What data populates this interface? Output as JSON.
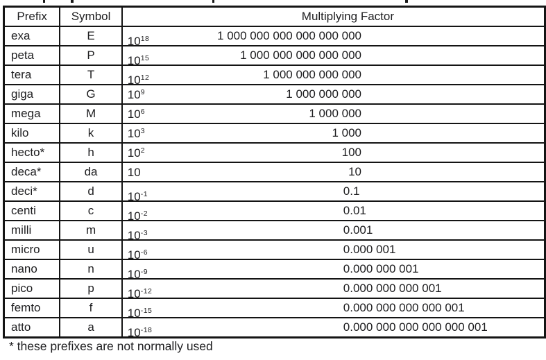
{
  "table": {
    "headers": [
      "Prefix",
      "Symbol",
      "Multiplying Factor"
    ],
    "rows": [
      {
        "prefix": "exa",
        "symbol": "E",
        "power_base": "10",
        "power_exponent": "18",
        "value": "1 000 000 000 000 000 000"
      },
      {
        "prefix": "peta",
        "symbol": "P",
        "power_base": "10",
        "power_exponent": "15",
        "value": "1 000 000 000 000 000"
      },
      {
        "prefix": "tera",
        "symbol": "T",
        "power_base": "10",
        "power_exponent": "12",
        "value": "1 000 000 000 000"
      },
      {
        "prefix": "giga",
        "symbol": "G",
        "power_base": "10",
        "power_exponent": "9",
        "value": "1 000 000 000"
      },
      {
        "prefix": "mega",
        "symbol": "M",
        "power_base": "10",
        "power_exponent": "6",
        "value": "1 000 000"
      },
      {
        "prefix": "kilo",
        "symbol": "k",
        "power_base": "10",
        "power_exponent": "3",
        "value": "1 000"
      },
      {
        "prefix": "hecto*",
        "symbol": "h",
        "power_base": "10",
        "power_exponent": "2",
        "value": "100"
      },
      {
        "prefix": "deca*",
        "symbol": "da",
        "power_base": "10",
        "power_exponent": "",
        "value": "10"
      },
      {
        "prefix": "deci*",
        "symbol": "d",
        "power_base": "10",
        "power_exponent": "-1",
        "value": "0.1"
      },
      {
        "prefix": "centi",
        "symbol": "c",
        "power_base": "10",
        "power_exponent": "-2",
        "value": "0.01"
      },
      {
        "prefix": "milli",
        "symbol": "m",
        "power_base": "10",
        "power_exponent": "-3",
        "value": "0.001"
      },
      {
        "prefix": "micro",
        "symbol": "u",
        "power_base": "10",
        "power_exponent": "-6",
        "value": "0.000 001"
      },
      {
        "prefix": "nano",
        "symbol": "n",
        "power_base": "10",
        "power_exponent": "-9",
        "value": "0.000 000 001"
      },
      {
        "prefix": "pico",
        "symbol": "p",
        "power_base": "10",
        "power_exponent": "-12",
        "value": "0.000 000 000 001"
      },
      {
        "prefix": "femto",
        "symbol": "f",
        "power_base": "10",
        "power_exponent": "-15",
        "value": "0.000 000 000 000 001"
      },
      {
        "prefix": "atto",
        "symbol": "a",
        "power_base": "10",
        "power_exponent": "-18",
        "value": "0.000 000 000 000 000 001"
      }
    ]
  },
  "footnote": "* these prefixes are not normally used",
  "colors": {
    "text": "#1d1d1f",
    "border": "#141414",
    "background": "#ffffff"
  }
}
